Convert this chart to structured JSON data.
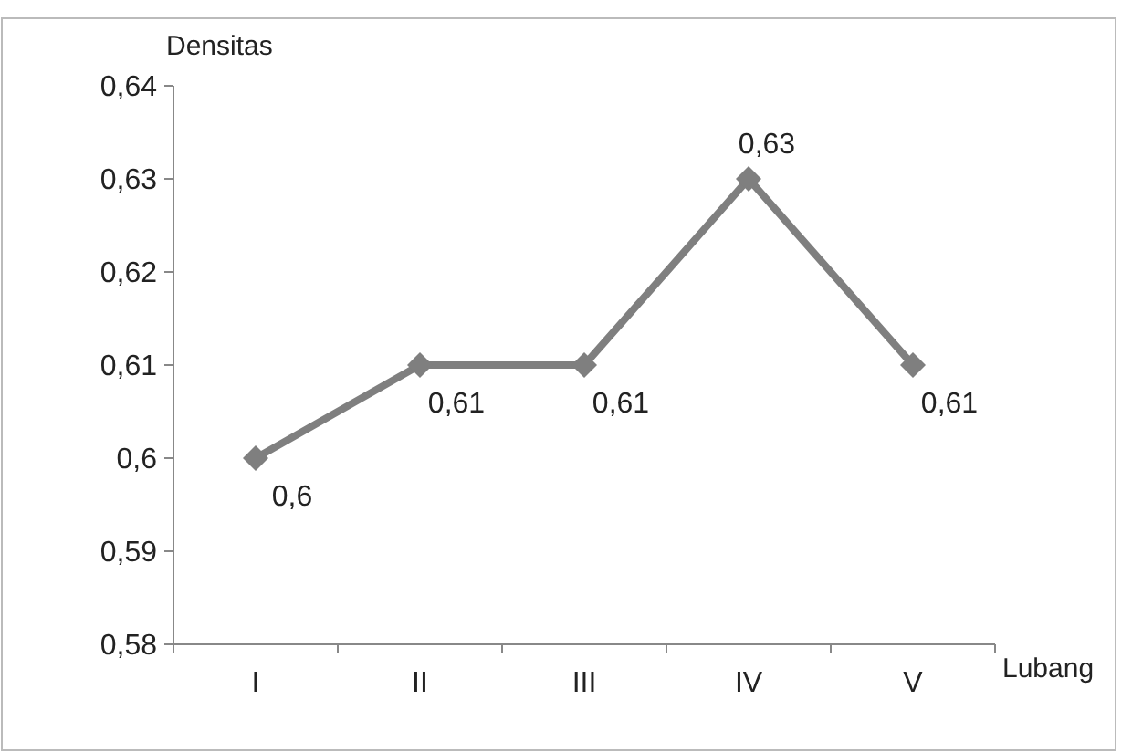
{
  "chart_data": {
    "type": "line",
    "xlabel": "Lubang",
    "ylabel": "Densitas",
    "categories": [
      "I",
      "II",
      "III",
      "IV",
      "V"
    ],
    "series": [
      {
        "color": "#7f7f7f",
        "values": [
          0.6,
          0.61,
          0.61,
          0.63,
          0.61
        ],
        "value_labels": [
          "0,6",
          "0,61",
          "0,61",
          "0,63",
          "0,61"
        ]
      }
    ],
    "ylim": [
      0.58,
      0.64
    ],
    "yticks": [
      {
        "value": 0.58,
        "label": "0,58"
      },
      {
        "value": 0.59,
        "label": "0,59"
      },
      {
        "value": 0.6,
        "label": "0,6"
      },
      {
        "value": 0.61,
        "label": "0,61"
      },
      {
        "value": 0.62,
        "label": "0,62"
      },
      {
        "value": 0.63,
        "label": "0,63"
      },
      {
        "value": 0.64,
        "label": "0,64"
      }
    ],
    "grid": false,
    "marker": "diamond",
    "line_style": "solid"
  }
}
